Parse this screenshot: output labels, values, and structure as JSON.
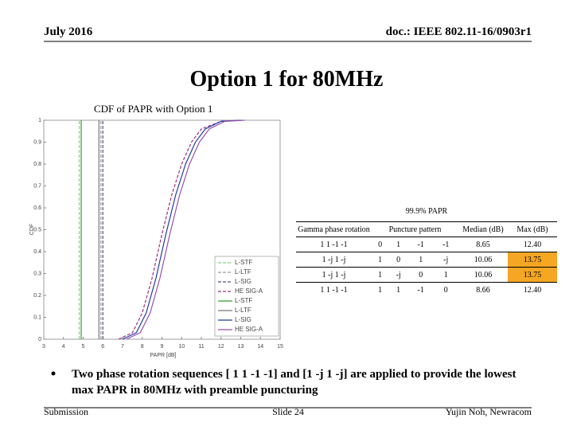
{
  "header": {
    "date": "July 2016",
    "doc": "doc.: IEEE 802.11-16/0903r1"
  },
  "title": "Option 1 for 80MHz",
  "chart_data": {
    "type": "line",
    "title": "CDF of PAPR with Option 1",
    "xlabel": "PAPR [dB]",
    "ylabel": "CDF",
    "xlim": [
      3,
      15
    ],
    "xticks": [
      3,
      4,
      5,
      6,
      7,
      8,
      9,
      10,
      11,
      12,
      13,
      14,
      15
    ],
    "ylim": [
      0,
      1
    ],
    "yticks": [
      0,
      0.1,
      0.2,
      0.3,
      0.4,
      0.5,
      0.6,
      0.7,
      0.8,
      0.9,
      1
    ],
    "grid": false,
    "legend": "lower right",
    "series": [
      {
        "name": "L-STF",
        "color": "#7fd97f",
        "dash": true,
        "x": [
          4.8,
          4.8
        ],
        "values": [
          0,
          1
        ]
      },
      {
        "name": "L-LTF",
        "color": "#999999",
        "dash": true,
        "x": [
          5.9,
          5.9
        ],
        "values": [
          0,
          1
        ]
      },
      {
        "name": "L-SIG",
        "color": "#555577",
        "dash": true,
        "x": [
          6,
          6
        ],
        "values": [
          0,
          1
        ]
      },
      {
        "name": "HE SIG-A",
        "color": "#a0307a",
        "dash": true,
        "x": [
          6.8,
          7.5,
          8,
          8.5,
          9,
          9.5,
          10,
          10.5,
          11,
          12,
          13
        ],
        "values": [
          0,
          0.03,
          0.12,
          0.28,
          0.48,
          0.66,
          0.8,
          0.9,
          0.96,
          0.995,
          1
        ]
      },
      {
        "name": "L-STF",
        "color": "#2ca02c",
        "dash": false,
        "x": [
          4.9,
          4.9
        ],
        "values": [
          0,
          1
        ]
      },
      {
        "name": "L-LTF",
        "color": "#777777",
        "dash": false,
        "x": [
          5.8,
          5.8
        ],
        "values": [
          0,
          1
        ]
      },
      {
        "name": "L-SIG",
        "color": "#1f3fa0",
        "dash": false,
        "x": [
          7,
          7.7,
          8.2,
          8.7,
          9.2,
          9.7,
          10.2,
          10.7,
          11.2,
          12,
          13
        ],
        "values": [
          0,
          0.03,
          0.12,
          0.28,
          0.48,
          0.66,
          0.8,
          0.9,
          0.96,
          0.995,
          1
        ]
      },
      {
        "name": "HE SIG-A",
        "color": "#9a4fb0",
        "dash": false,
        "x": [
          7.2,
          7.9,
          8.4,
          8.9,
          9.4,
          9.9,
          10.4,
          10.9,
          11.4,
          12.2,
          13.2
        ],
        "values": [
          0,
          0.03,
          0.12,
          0.28,
          0.48,
          0.66,
          0.8,
          0.9,
          0.96,
          0.995,
          1
        ]
      }
    ]
  },
  "table": {
    "title": "99.9% PAPR",
    "headers": [
      "Gamma phase rotation",
      "Puncture pattern",
      "Median (dB)",
      "Max (dB)"
    ],
    "rows": [
      [
        "1 1 -1 -1",
        "0",
        "1",
        "-1",
        "-1",
        "8.65",
        "12.40"
      ],
      [
        "1 -j 1 -j",
        "1",
        "0",
        "1",
        "-j",
        "10.06",
        "13.75"
      ],
      [
        "1 -j 1 -j",
        "1",
        "-j",
        "0",
        "1",
        "10.06",
        "13.75"
      ],
      [
        "1 1 -1 -1",
        "1",
        "1",
        "-1",
        "0",
        "8.66",
        "12.40"
      ]
    ],
    "highlight_color": "#f5a623",
    "highlighted_cells": [
      [
        1,
        6
      ],
      [
        2,
        6
      ]
    ]
  },
  "bullet": "Two phase rotation sequences [ 1 1 -1 -1] and [1 -j 1 -j] are applied to provide the lowest max PAPR in 80MHz with preamble puncturing",
  "footer": {
    "left": "Submission",
    "center": "Slide 24",
    "right": "Yujin Noh, Newracom"
  }
}
